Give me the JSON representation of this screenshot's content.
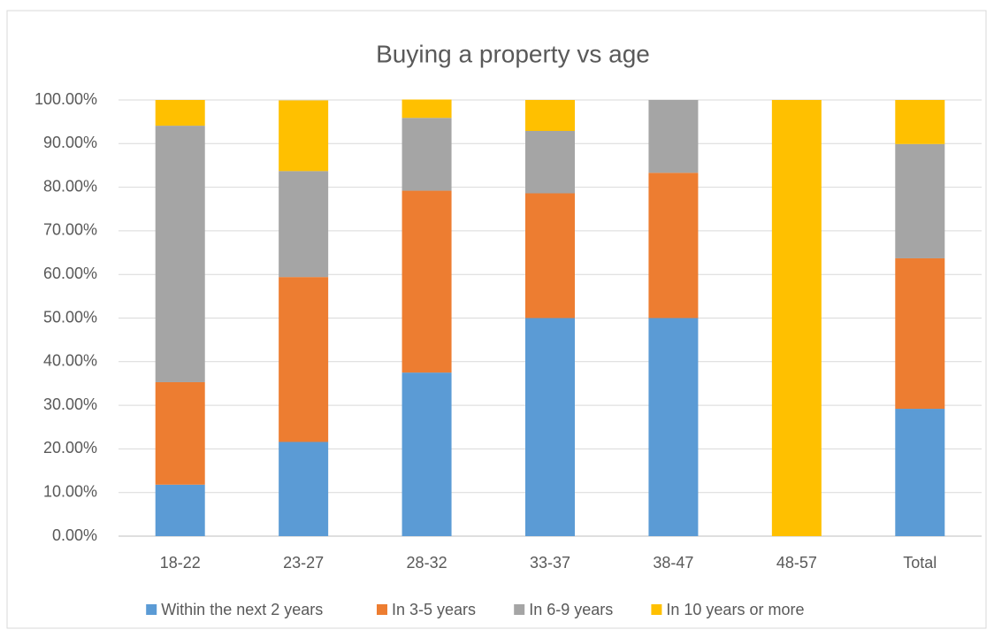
{
  "chart_data": {
    "type": "stacked_bar",
    "title": "Buying a property vs age",
    "categories": [
      "18-22",
      "23-27",
      "28-32",
      "33-37",
      "38-47",
      "48-57",
      "Total"
    ],
    "series": [
      {
        "name": "Within the next 2 years",
        "color": "#5b9bd5",
        "values": [
          11.8,
          21.6,
          37.5,
          50,
          50,
          0,
          29.2
        ]
      },
      {
        "name": "In 3-5 years",
        "color": "#ed7d31",
        "values": [
          23.5,
          37.8,
          41.7,
          28.6,
          33.3,
          0,
          34.5
        ]
      },
      {
        "name": "In 6-9 years",
        "color": "#a5a5a5",
        "values": [
          58.8,
          24.3,
          16.7,
          14.3,
          16.7,
          0,
          26.2
        ]
      },
      {
        "name": "In 10 years or more",
        "color": "#ffc000",
        "values": [
          5.9,
          16.2,
          4.2,
          7.1,
          0,
          100,
          10.1
        ]
      }
    ],
    "ylim": [
      0,
      100
    ],
    "yticks": [
      {
        "value": 0,
        "label": "0.00%"
      },
      {
        "value": 10,
        "label": "10.00%"
      },
      {
        "value": 20,
        "label": "20.00%"
      },
      {
        "value": 30,
        "label": "30.00%"
      },
      {
        "value": 40,
        "label": "40.00%"
      },
      {
        "value": 50,
        "label": "50.00%"
      },
      {
        "value": 60,
        "label": "60.00%"
      },
      {
        "value": 70,
        "label": "70.00%"
      },
      {
        "value": 80,
        "label": "80.00%"
      },
      {
        "value": 90,
        "label": "90.00%"
      },
      {
        "value": 100,
        "label": "100.00%"
      }
    ],
    "grid": true,
    "legend": "bottom"
  }
}
